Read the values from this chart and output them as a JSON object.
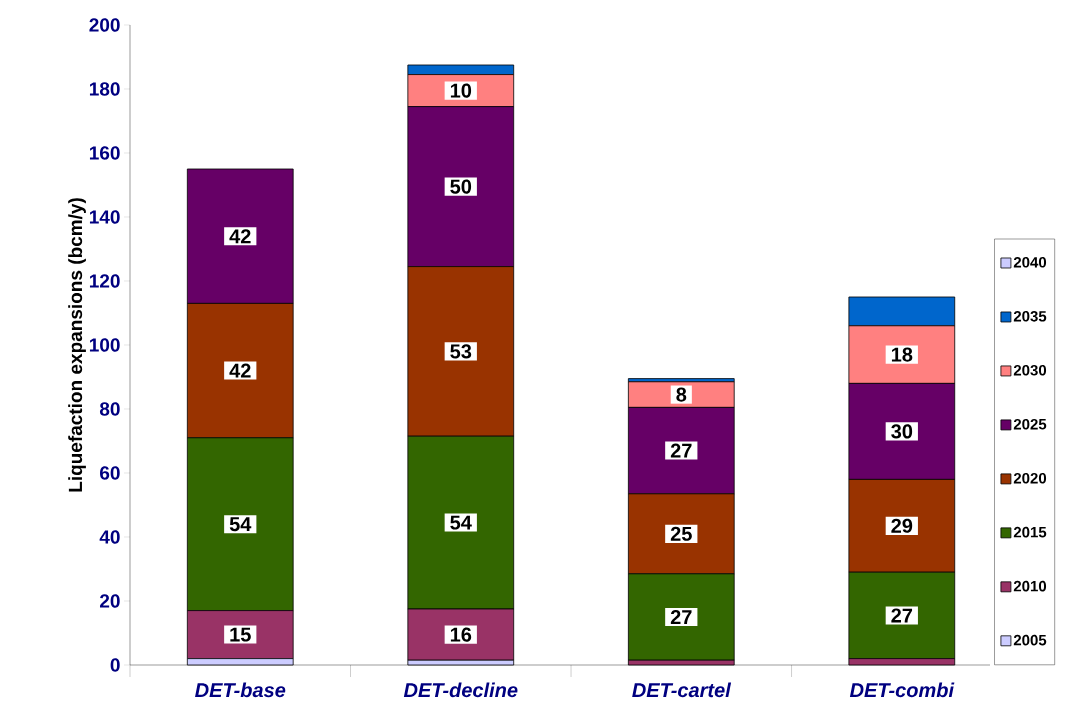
{
  "chart_data": {
    "type": "bar",
    "stacked": true,
    "ylabel": "Liquefaction expansions (bcm/y)",
    "categories": [
      "DET-base",
      "DET-decline",
      "DET-cartel",
      "DET-combi"
    ],
    "ylim": [
      0,
      200
    ],
    "yticks": [
      0,
      20,
      40,
      60,
      80,
      100,
      120,
      140,
      160,
      180,
      200
    ],
    "grid": false,
    "legend": "right",
    "series": [
      {
        "name": "2005",
        "color": "#ccccff",
        "values": [
          2,
          1.5,
          null,
          null
        ],
        "value_labels": [
          null,
          null,
          null,
          null
        ]
      },
      {
        "name": "2010",
        "color": "#993366",
        "values": [
          15,
          16,
          1.5,
          2
        ],
        "value_labels": [
          "15",
          "16",
          null,
          null
        ]
      },
      {
        "name": "2015",
        "color": "#336600",
        "values": [
          54,
          54,
          27,
          27
        ],
        "value_labels": [
          "54",
          "54",
          "27",
          "27"
        ]
      },
      {
        "name": "2020",
        "color": "#993300",
        "values": [
          42,
          53,
          25,
          29
        ],
        "value_labels": [
          "42",
          "53",
          "25",
          "29"
        ]
      },
      {
        "name": "2025",
        "color": "#660066",
        "values": [
          42,
          50,
          27,
          30
        ],
        "value_labels": [
          "42",
          "50",
          "27",
          "30"
        ]
      },
      {
        "name": "2030",
        "color": "#ff8080",
        "values": [
          null,
          10,
          8,
          18
        ],
        "value_labels": [
          null,
          "10",
          "8",
          "18"
        ]
      },
      {
        "name": "2035",
        "color": "#0066cc",
        "values": [
          null,
          3,
          1,
          9
        ],
        "value_labels": [
          null,
          null,
          null,
          null
        ]
      },
      {
        "name": "2040",
        "color": "#ccccff",
        "values": [
          null,
          null,
          null,
          null
        ],
        "value_labels": [
          null,
          null,
          null,
          null
        ]
      }
    ]
  }
}
